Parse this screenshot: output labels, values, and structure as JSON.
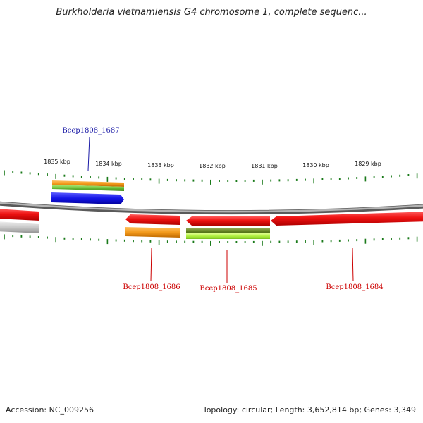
{
  "title": "Burkholderia vietnamiensis G4 chromosome 1, complete sequenc...",
  "footer": {
    "accession": "Accession: NC_009256",
    "summary": "Topology: circular; Length: 3,652,814 bp; Genes: 3,349"
  },
  "scale_ticks": [
    "1835 kbp",
    "1834 kbp",
    "1833 kbp",
    "1832 kbp",
    "1831 kbp",
    "1830 kbp",
    "1829 kbp"
  ],
  "gene_labels": [
    "Bcep1808_1687",
    "Bcep1808_1686",
    "Bcep1808_1685",
    "Bcep1808_1684"
  ],
  "colors": {
    "tick": "#1a7a1a",
    "backbone": "#8c8c8c",
    "cds_red": "#ee1111",
    "orange": "#f39a1c",
    "green": "#7ac943",
    "blue": "#1414e6",
    "label_blue": "#1a1aa6",
    "label_red": "#cc0000"
  }
}
